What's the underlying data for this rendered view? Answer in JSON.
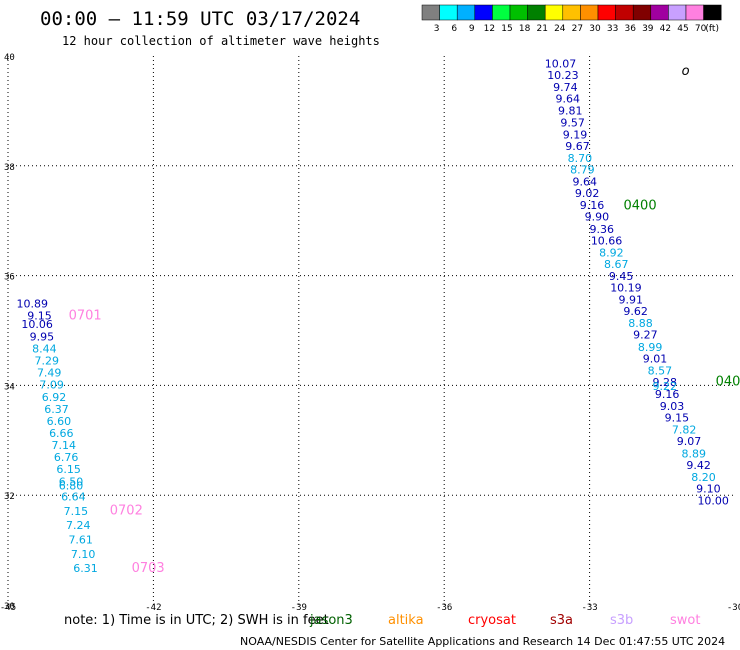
{
  "title": "00:00 – 11:59 UTC 03/17/2024",
  "subtitle": "12 hour collection of altimeter wave heights",
  "colorbar": {
    "colors": [
      "#808080",
      "#00ffff",
      "#00b0ff",
      "#0000ff",
      "#00ff40",
      "#00c000",
      "#008000",
      "#ffff00",
      "#ffc000",
      "#ff9000",
      "#ff0000",
      "#c00000",
      "#800000",
      "#a000a0",
      "#c8a0ff",
      "#ff80e0",
      "#000000"
    ],
    "ticks": [
      "3",
      "6",
      "9",
      "12",
      "15",
      "18",
      "21",
      "24",
      "27",
      "30",
      "33",
      "36",
      "39",
      "42",
      "45",
      "70",
      "(ft)"
    ]
  },
  "chart_data": {
    "type": "scatter",
    "title": "00:00 – 11:59 UTC 03/17/2024",
    "subtitle": "12 hour collection of altimeter wave heights",
    "x_ticks": [
      -45,
      -42,
      -39,
      -36,
      -33,
      -30
    ],
    "y_ticks": [
      30,
      32,
      34,
      36,
      38,
      40
    ],
    "xlim": [
      -45,
      -30
    ],
    "ylim": [
      30,
      40
    ],
    "grid": true,
    "series": [
      {
        "name": "jason3",
        "points": [
          {
            "lon": -33.6,
            "lat": 39.79,
            "swh": 10.07,
            "color": "#0000b0"
          },
          {
            "lon": -33.55,
            "lat": 39.58,
            "swh": 10.23,
            "color": "#0000b0"
          },
          {
            "lon": -33.5,
            "lat": 39.36,
            "swh": 9.74,
            "color": "#0000b0"
          },
          {
            "lon": -33.45,
            "lat": 39.15,
            "swh": 9.64,
            "color": "#0000b0"
          },
          {
            "lon": -33.4,
            "lat": 38.93,
            "swh": 9.81,
            "color": "#0000b0"
          },
          {
            "lon": -33.35,
            "lat": 38.72,
            "swh": 9.57,
            "color": "#0000b0"
          },
          {
            "lon": -33.3,
            "lat": 38.5,
            "swh": 9.19,
            "color": "#0000b0"
          },
          {
            "lon": -33.25,
            "lat": 38.29,
            "swh": 9.67,
            "color": "#0000b0"
          },
          {
            "lon": -33.2,
            "lat": 38.07,
            "swh": 8.7,
            "color": "#00a8e0"
          },
          {
            "lon": -33.15,
            "lat": 37.86,
            "swh": 8.79,
            "color": "#00a8e0"
          },
          {
            "lon": -33.1,
            "lat": 37.64,
            "swh": 9.64,
            "color": "#0000b0"
          },
          {
            "lon": -33.05,
            "lat": 37.43,
            "swh": 9.02,
            "color": "#0000b0"
          },
          {
            "lon": -32.95,
            "lat": 37.21,
            "swh": 9.16,
            "color": "#0000b0"
          },
          {
            "lon": -32.85,
            "lat": 37.0,
            "swh": 9.9,
            "color": "#0000b0"
          },
          {
            "lon": -32.75,
            "lat": 36.78,
            "swh": 9.36,
            "color": "#0000b0"
          },
          {
            "lon": -32.65,
            "lat": 36.57,
            "swh": 10.66,
            "color": "#0000b0"
          },
          {
            "lon": -32.55,
            "lat": 36.35,
            "swh": 8.92,
            "color": "#00a8e0"
          },
          {
            "lon": -32.45,
            "lat": 36.14,
            "swh": 8.67,
            "color": "#00a8e0"
          },
          {
            "lon": -32.35,
            "lat": 35.92,
            "swh": 9.45,
            "color": "#0000b0"
          },
          {
            "lon": -32.25,
            "lat": 35.71,
            "swh": 10.19,
            "color": "#0000b0"
          },
          {
            "lon": -32.15,
            "lat": 35.49,
            "swh": 9.91,
            "color": "#0000b0"
          },
          {
            "lon": -32.05,
            "lat": 35.28,
            "swh": 9.62,
            "color": "#0000b0"
          },
          {
            "lon": -31.95,
            "lat": 35.06,
            "swh": 8.88,
            "color": "#00a8e0"
          },
          {
            "lon": -31.85,
            "lat": 34.85,
            "swh": 9.27,
            "color": "#0000b0"
          },
          {
            "lon": -31.75,
            "lat": 34.63,
            "swh": 8.99,
            "color": "#00a8e0"
          },
          {
            "lon": -31.65,
            "lat": 34.42,
            "swh": 9.01,
            "color": "#0000b0"
          },
          {
            "lon": -31.55,
            "lat": 34.2,
            "swh": 8.57,
            "color": "#00a8e0"
          },
          {
            "lon": -31.45,
            "lat": 33.99,
            "swh": 9.28,
            "color": "#0000b0"
          },
          {
            "lon": -31.45,
            "lat": 33.92,
            "swh": 9.22,
            "color": "#00a8e0"
          },
          {
            "lon": -31.4,
            "lat": 33.77,
            "swh": 9.16,
            "color": "#0000b0"
          },
          {
            "lon": -31.3,
            "lat": 33.55,
            "swh": 9.03,
            "color": "#0000b0"
          },
          {
            "lon": -31.2,
            "lat": 33.34,
            "swh": 9.15,
            "color": "#0000b0"
          },
          {
            "lon": -31.05,
            "lat": 33.12,
            "swh": 7.82,
            "color": "#00a8e0"
          },
          {
            "lon": -30.95,
            "lat": 32.91,
            "swh": 9.07,
            "color": "#0000b0"
          },
          {
            "lon": -30.85,
            "lat": 32.69,
            "swh": 8.89,
            "color": "#00a8e0"
          },
          {
            "lon": -30.75,
            "lat": 32.48,
            "swh": 9.42,
            "color": "#0000b0"
          },
          {
            "lon": -30.65,
            "lat": 32.26,
            "swh": 8.2,
            "color": "#00a8e0"
          },
          {
            "lon": -30.55,
            "lat": 32.05,
            "swh": 9.1,
            "color": "#0000b0"
          },
          {
            "lon": -30.45,
            "lat": 31.83,
            "swh": 10.0,
            "color": "#0000b0"
          }
        ]
      },
      {
        "name": "jason3",
        "points": [
          {
            "lon": -44.5,
            "lat": 35.42,
            "swh": 10.89,
            "color": "#0000b0"
          },
          {
            "lon": -44.35,
            "lat": 35.2,
            "swh": 9.15,
            "color": "#0000b0"
          },
          {
            "lon": -44.4,
            "lat": 35.05,
            "swh": 10.06,
            "color": "#0000b0"
          },
          {
            "lon": -44.3,
            "lat": 34.82,
            "swh": 9.95,
            "color": "#0000b0"
          },
          {
            "lon": -44.25,
            "lat": 34.6,
            "swh": 8.44,
            "color": "#00a8e0"
          },
          {
            "lon": -44.2,
            "lat": 34.38,
            "swh": 7.29,
            "color": "#00a8e0"
          },
          {
            "lon": -44.15,
            "lat": 34.16,
            "swh": 7.49,
            "color": "#00a8e0"
          },
          {
            "lon": -44.1,
            "lat": 33.94,
            "swh": 7.09,
            "color": "#00a8e0"
          },
          {
            "lon": -44.05,
            "lat": 33.72,
            "swh": 6.92,
            "color": "#00a8e0"
          },
          {
            "lon": -44.0,
            "lat": 33.5,
            "swh": 6.37,
            "color": "#00a8e0"
          },
          {
            "lon": -43.95,
            "lat": 33.28,
            "swh": 6.6,
            "color": "#00a8e0"
          },
          {
            "lon": -43.9,
            "lat": 33.06,
            "swh": 6.66,
            "color": "#00a8e0"
          },
          {
            "lon": -43.85,
            "lat": 32.84,
            "swh": 7.14,
            "color": "#00a8e0"
          },
          {
            "lon": -43.8,
            "lat": 32.62,
            "swh": 6.76,
            "color": "#00a8e0"
          },
          {
            "lon": -43.75,
            "lat": 32.4,
            "swh": 6.15,
            "color": "#00a8e0"
          },
          {
            "lon": -43.7,
            "lat": 32.18,
            "swh": 6.5,
            "color": "#00a8e0"
          },
          {
            "lon": -43.7,
            "lat": 32.1,
            "swh": 6.8,
            "color": "#00a8e0"
          },
          {
            "lon": -43.65,
            "lat": 31.9,
            "swh": 6.64,
            "color": "#00a8e0"
          },
          {
            "lon": -43.6,
            "lat": 31.64,
            "swh": 7.15,
            "color": "#00a8e0"
          },
          {
            "lon": -43.55,
            "lat": 31.38,
            "swh": 7.24,
            "color": "#00a8e0"
          },
          {
            "lon": -43.5,
            "lat": 31.12,
            "swh": 7.61,
            "color": "#00a8e0"
          },
          {
            "lon": -43.45,
            "lat": 30.86,
            "swh": 7.1,
            "color": "#00a8e0"
          },
          {
            "lon": -43.4,
            "lat": 30.6,
            "swh": 6.31,
            "color": "#00a8e0"
          }
        ]
      }
    ],
    "time_labels": [
      {
        "text": "0400",
        "lon": -32.3,
        "lat": 37.2,
        "color": "#008000"
      },
      {
        "text": "040",
        "lon": -30.4,
        "lat": 34.0,
        "color": "#008000"
      },
      {
        "text": "0701",
        "lon": -43.75,
        "lat": 35.2,
        "color": "#ff80e0"
      },
      {
        "text": "0702",
        "lon": -42.9,
        "lat": 31.65,
        "color": "#ff80e0"
      },
      {
        "text": "0703",
        "lon": -42.45,
        "lat": 30.6,
        "color": "#ff80e0"
      }
    ],
    "marker_label": {
      "text": "o",
      "lon": -31.1,
      "lat": 39.65
    }
  },
  "note": "note:  1) Time is in UTC; 2) SWH is in feet",
  "legend": [
    {
      "name": "jason3",
      "color": "#006000"
    },
    {
      "name": "altika",
      "color": "#ff9000"
    },
    {
      "name": "cryosat",
      "color": "#ff0000"
    },
    {
      "name": "s3a",
      "color": "#a00000"
    },
    {
      "name": "s3b",
      "color": "#c8a0ff"
    },
    {
      "name": "swot",
      "color": "#ff80e0"
    }
  ],
  "footer": "NOAA/NESDIS Center for Satellite Applications and Research    14 Dec 01:47:55 UTC 2024"
}
